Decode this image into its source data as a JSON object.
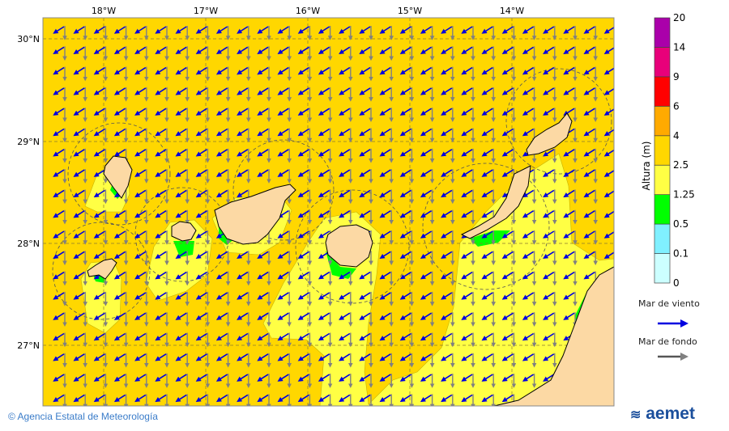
{
  "map": {
    "lon_labels": [
      "18°W",
      "17°W",
      "16°W",
      "15°W",
      "14°W"
    ],
    "lat_labels": [
      "30°N",
      "29°N",
      "28°N",
      "27°N"
    ],
    "colors": {
      "ocean_high": "#ffd700",
      "ocean_mid": "#ffff44",
      "ocean_low": "#00ff00",
      "land": "#fcd9a4",
      "wind_sea_arrow": "#0000e0",
      "swell_arrow": "#808080"
    }
  },
  "colorbar": {
    "title": "Altura (m)",
    "ticks": [
      "0",
      "0.1",
      "0.5",
      "1.25",
      "2.5",
      "4",
      "6",
      "9",
      "14",
      "20"
    ],
    "colors": [
      "#ccffff",
      "#80f0ff",
      "#00ff00",
      "#ffff44",
      "#ffd700",
      "#ffaa00",
      "#ff0000",
      "#e8007a",
      "#aa00aa"
    ]
  },
  "legend": {
    "wind_sea": "Mar de viento",
    "swell": "Mar de fondo"
  },
  "footer": {
    "copyright": "© Agencia Estatal de Meteorología",
    "logo": "aemet"
  }
}
